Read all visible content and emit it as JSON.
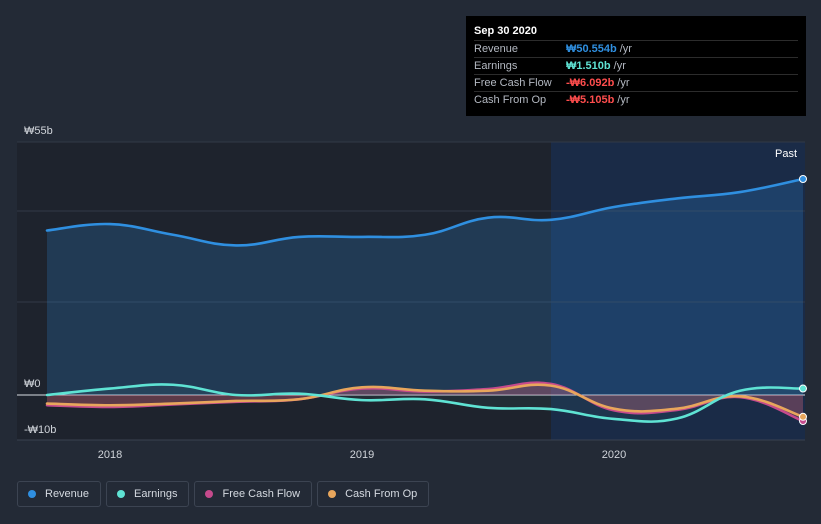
{
  "tooltip": {
    "date": "Sep 30 2020",
    "rows": [
      {
        "label": "Revenue",
        "value": "₩50.554b",
        "unit": "/yr",
        "color": "#2f8fe0"
      },
      {
        "label": "Earnings",
        "value": "₩1.510b",
        "unit": "/yr",
        "color": "#5fe3d4"
      },
      {
        "label": "Free Cash Flow",
        "value": "-₩6.092b",
        "unit": "/yr",
        "color": "#ff4d4d"
      },
      {
        "label": "Cash From Op",
        "value": "-₩5.105b",
        "unit": "/yr",
        "color": "#ff4d4d"
      }
    ]
  },
  "legend": [
    {
      "label": "Revenue",
      "color": "#2f8fe0"
    },
    {
      "label": "Earnings",
      "color": "#5fe3d4"
    },
    {
      "label": "Free Cash Flow",
      "color": "#c54a8c"
    },
    {
      "label": "Cash From Op",
      "color": "#e8a65c"
    }
  ],
  "chart_data": {
    "type": "line",
    "title": "",
    "xlabel": "",
    "ylabel": "",
    "past_label": "Past",
    "x_ticks": [
      {
        "label": "2018",
        "value": 2018.0
      },
      {
        "label": "2019",
        "value": 2019.0
      },
      {
        "label": "2020",
        "value": 2020.0
      }
    ],
    "y_ticks": [
      {
        "label": "₩55b",
        "value": 55
      },
      {
        "label": "₩0",
        "value": 0
      },
      {
        "label": "-₩10b",
        "value": -10
      }
    ],
    "xlim": [
      2017.75,
      2020.75
    ],
    "ylim": [
      -10,
      55
    ],
    "highlight_start": 2019.75,
    "series": [
      {
        "name": "Revenue",
        "color": "#2f8fe0",
        "x": [
          2017.75,
          2018.0,
          2018.25,
          2018.5,
          2018.75,
          2019.0,
          2019.25,
          2019.5,
          2019.75,
          2020.0,
          2020.25,
          2020.5,
          2020.75
        ],
        "values": [
          38.5,
          40.0,
          37.5,
          35.0,
          37.0,
          37.0,
          37.5,
          41.5,
          41.0,
          44.0,
          46.0,
          47.5,
          50.554
        ]
      },
      {
        "name": "Earnings",
        "color": "#5fe3d4",
        "x": [
          2017.75,
          2018.0,
          2018.25,
          2018.5,
          2018.75,
          2019.0,
          2019.25,
          2019.5,
          2019.75,
          2020.0,
          2020.25,
          2020.5,
          2020.75
        ],
        "values": [
          0.0,
          1.5,
          2.4,
          0.0,
          0.3,
          -1.2,
          -1.0,
          -3.0,
          -3.3,
          -5.6,
          -5.5,
          1.0,
          1.51
        ]
      },
      {
        "name": "Free Cash Flow",
        "color": "#c54a8c",
        "x": [
          2017.75,
          2018.0,
          2018.25,
          2018.5,
          2018.75,
          2019.0,
          2019.25,
          2019.5,
          2019.75,
          2020.0,
          2020.25,
          2020.5,
          2020.75
        ],
        "values": [
          -2.4,
          -2.8,
          -2.2,
          -1.6,
          -1.0,
          1.5,
          0.8,
          1.4,
          2.6,
          -3.6,
          -3.5,
          -0.5,
          -6.092
        ]
      },
      {
        "name": "Cash From Op",
        "color": "#e8a65c",
        "x": [
          2017.75,
          2018.0,
          2018.25,
          2018.5,
          2018.75,
          2019.0,
          2019.25,
          2019.5,
          2019.75,
          2020.0,
          2020.25,
          2020.5,
          2020.75
        ],
        "values": [
          -2.0,
          -2.4,
          -2.0,
          -1.4,
          -1.0,
          1.8,
          1.0,
          1.0,
          2.2,
          -3.2,
          -3.2,
          -0.3,
          -5.105
        ]
      }
    ]
  }
}
